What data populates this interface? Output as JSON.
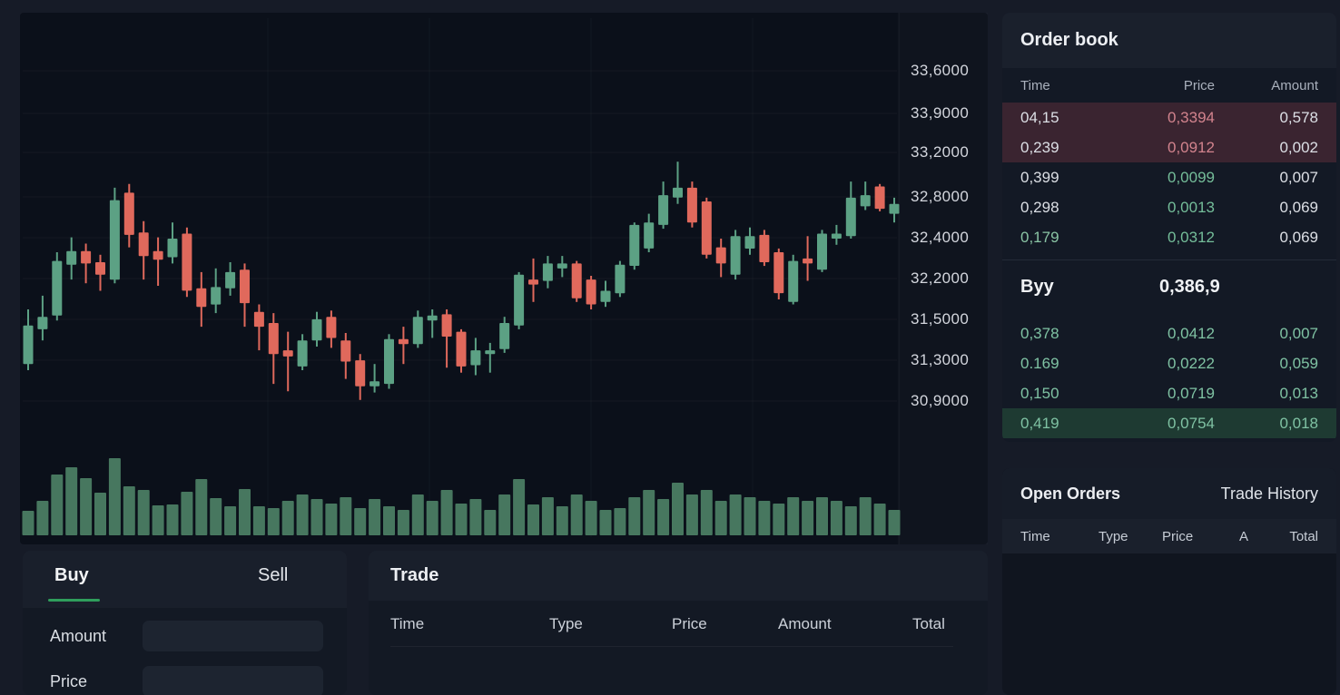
{
  "colors": {
    "up": "#5ca184",
    "down": "#e0695c",
    "volume": "#47775f",
    "ask_row_bg": "#3a2430",
    "bid_row_bg": "#1e3a32",
    "accent_green": "#2f9e5c"
  },
  "chart_data": {
    "type": "candlestick",
    "title": "",
    "y_axis_labels": [
      "33,6000",
      "33,9000",
      "33,2000",
      "32,8000",
      "32,4000",
      "32,2000",
      "31,5000",
      "31,3000",
      "30,9000"
    ],
    "price_axis": {
      "top_price": 33.88,
      "bottom_price": 30.81
    },
    "legend_position": "none",
    "grid": true,
    "candles": [
      {
        "o": 31.24,
        "h": 31.68,
        "l": 31.19,
        "c": 31.55
      },
      {
        "o": 31.52,
        "h": 31.79,
        "l": 31.43,
        "c": 31.62
      },
      {
        "o": 31.63,
        "h": 32.14,
        "l": 31.59,
        "c": 32.07
      },
      {
        "o": 32.04,
        "h": 32.26,
        "l": 31.92,
        "c": 32.15
      },
      {
        "o": 32.15,
        "h": 32.21,
        "l": 31.89,
        "c": 32.05
      },
      {
        "o": 32.06,
        "h": 32.12,
        "l": 31.83,
        "c": 31.96
      },
      {
        "o": 31.92,
        "h": 32.66,
        "l": 31.89,
        "c": 32.56
      },
      {
        "o": 32.62,
        "h": 32.69,
        "l": 32.18,
        "c": 32.28
      },
      {
        "o": 32.3,
        "h": 32.39,
        "l": 31.92,
        "c": 32.11
      },
      {
        "o": 32.15,
        "h": 32.26,
        "l": 31.87,
        "c": 32.08
      },
      {
        "o": 32.1,
        "h": 32.38,
        "l": 32.05,
        "c": 32.25
      },
      {
        "o": 32.29,
        "h": 32.34,
        "l": 31.78,
        "c": 31.83
      },
      {
        "o": 31.85,
        "h": 31.98,
        "l": 31.54,
        "c": 31.7
      },
      {
        "o": 31.72,
        "h": 32.01,
        "l": 31.65,
        "c": 31.86
      },
      {
        "o": 31.85,
        "h": 32.06,
        "l": 31.79,
        "c": 31.98
      },
      {
        "o": 32.0,
        "h": 32.05,
        "l": 31.54,
        "c": 31.73
      },
      {
        "o": 31.66,
        "h": 31.72,
        "l": 31.35,
        "c": 31.54
      },
      {
        "o": 31.57,
        "h": 31.65,
        "l": 31.08,
        "c": 31.32
      },
      {
        "o": 31.35,
        "h": 31.5,
        "l": 31.02,
        "c": 31.3
      },
      {
        "o": 31.22,
        "h": 31.48,
        "l": 31.19,
        "c": 31.43
      },
      {
        "o": 31.43,
        "h": 31.66,
        "l": 31.38,
        "c": 31.6
      },
      {
        "o": 31.62,
        "h": 31.67,
        "l": 31.37,
        "c": 31.45
      },
      {
        "o": 31.43,
        "h": 31.49,
        "l": 31.12,
        "c": 31.26
      },
      {
        "o": 31.27,
        "h": 31.32,
        "l": 30.95,
        "c": 31.06
      },
      {
        "o": 31.06,
        "h": 31.24,
        "l": 31.01,
        "c": 31.1
      },
      {
        "o": 31.08,
        "h": 31.48,
        "l": 31.04,
        "c": 31.44
      },
      {
        "o": 31.44,
        "h": 31.54,
        "l": 31.24,
        "c": 31.4
      },
      {
        "o": 31.4,
        "h": 31.67,
        "l": 31.37,
        "c": 31.62
      },
      {
        "o": 31.59,
        "h": 31.68,
        "l": 31.45,
        "c": 31.63
      },
      {
        "o": 31.64,
        "h": 31.68,
        "l": 31.21,
        "c": 31.46
      },
      {
        "o": 31.5,
        "h": 31.52,
        "l": 31.17,
        "c": 31.22
      },
      {
        "o": 31.23,
        "h": 31.45,
        "l": 31.15,
        "c": 31.35
      },
      {
        "o": 31.32,
        "h": 31.41,
        "l": 31.17,
        "c": 31.35
      },
      {
        "o": 31.36,
        "h": 31.62,
        "l": 31.33,
        "c": 31.57
      },
      {
        "o": 31.55,
        "h": 31.98,
        "l": 31.52,
        "c": 31.96
      },
      {
        "o": 31.92,
        "h": 32.09,
        "l": 31.74,
        "c": 31.88
      },
      {
        "o": 31.91,
        "h": 32.11,
        "l": 31.85,
        "c": 32.05
      },
      {
        "o": 32.01,
        "h": 32.11,
        "l": 31.94,
        "c": 32.05
      },
      {
        "o": 32.05,
        "h": 32.07,
        "l": 31.74,
        "c": 31.77
      },
      {
        "o": 31.92,
        "h": 31.95,
        "l": 31.68,
        "c": 31.72
      },
      {
        "o": 31.74,
        "h": 31.91,
        "l": 31.7,
        "c": 31.83
      },
      {
        "o": 31.81,
        "h": 32.07,
        "l": 31.78,
        "c": 32.04
      },
      {
        "o": 32.03,
        "h": 32.38,
        "l": 32.0,
        "c": 32.36
      },
      {
        "o": 32.17,
        "h": 32.45,
        "l": 32.14,
        "c": 32.38
      },
      {
        "o": 32.36,
        "h": 32.71,
        "l": 32.33,
        "c": 32.6
      },
      {
        "o": 32.58,
        "h": 32.87,
        "l": 32.53,
        "c": 32.66
      },
      {
        "o": 32.66,
        "h": 32.71,
        "l": 32.34,
        "c": 32.38
      },
      {
        "o": 32.55,
        "h": 32.58,
        "l": 32.09,
        "c": 32.12
      },
      {
        "o": 32.18,
        "h": 32.25,
        "l": 31.94,
        "c": 32.05
      },
      {
        "o": 31.96,
        "h": 32.32,
        "l": 31.92,
        "c": 32.27
      },
      {
        "o": 32.17,
        "h": 32.34,
        "l": 32.12,
        "c": 32.27
      },
      {
        "o": 32.28,
        "h": 32.32,
        "l": 32.03,
        "c": 32.06
      },
      {
        "o": 32.14,
        "h": 32.17,
        "l": 31.76,
        "c": 31.81
      },
      {
        "o": 31.74,
        "h": 32.12,
        "l": 31.72,
        "c": 32.07
      },
      {
        "o": 32.09,
        "h": 32.27,
        "l": 31.91,
        "c": 32.05
      },
      {
        "o": 32.0,
        "h": 32.32,
        "l": 31.98,
        "c": 32.29
      },
      {
        "o": 32.25,
        "h": 32.36,
        "l": 32.2,
        "c": 32.29
      },
      {
        "o": 32.27,
        "h": 32.71,
        "l": 32.25,
        "c": 32.58
      },
      {
        "o": 32.51,
        "h": 32.71,
        "l": 32.48,
        "c": 32.6
      },
      {
        "o": 32.67,
        "h": 32.69,
        "l": 32.47,
        "c": 32.49
      },
      {
        "o": 32.45,
        "h": 32.58,
        "l": 32.38,
        "c": 32.53
      }
    ],
    "volume": [
      27,
      38,
      67,
      75,
      63,
      47,
      85,
      54,
      50,
      33,
      34,
      48,
      62,
      41,
      32,
      51,
      32,
      30,
      38,
      45,
      40,
      35,
      42,
      30,
      40,
      32,
      28,
      45,
      38,
      50,
      35,
      40,
      28,
      45,
      62,
      34,
      42,
      32,
      45,
      38,
      28,
      30,
      42,
      50,
      40,
      58,
      45,
      50,
      38,
      45,
      42,
      38,
      35,
      42,
      38,
      42,
      38,
      32,
      42,
      35,
      28
    ],
    "colors": {
      "up": "#5ca184",
      "down": "#e0695c",
      "volume": "#47775f"
    }
  },
  "order_book": {
    "title": "Order book",
    "columns": [
      "Time",
      "Price",
      "Amount"
    ],
    "asks": [
      {
        "time": "04,15",
        "price": "0,3394",
        "amount": "0,578",
        "side": "sell",
        "row_bg": true,
        "time_green": false
      },
      {
        "time": "0,239",
        "price": "0,0912",
        "amount": "0,002",
        "side": "sell",
        "row_bg": true,
        "time_green": false
      },
      {
        "time": "0,399",
        "price": "0,0099",
        "amount": "0,007",
        "side": "buy",
        "row_bg": false,
        "time_green": false
      },
      {
        "time": "0,298",
        "price": "0,0013",
        "amount": "0,069",
        "side": "buy",
        "row_bg": false,
        "time_green": false
      },
      {
        "time": "0,179",
        "price": "0,0312",
        "amount": "0,069",
        "side": "buy",
        "row_bg": false,
        "time_green": true
      }
    ],
    "buy_section": {
      "label": "Byy",
      "value": "0,386,9",
      "rows": [
        {
          "time": "0,378",
          "price": "0,0412",
          "amount": "0,007",
          "highlight": false
        },
        {
          "time": "0.169",
          "price": "0,0222",
          "amount": "0,059",
          "highlight": false
        },
        {
          "time": "0,150",
          "price": "0,0719",
          "amount": "0,013",
          "highlight": false
        },
        {
          "time": "0,419",
          "price": "0,0754",
          "amount": "0,018",
          "highlight": true
        }
      ]
    }
  },
  "open_orders": {
    "tabs": [
      {
        "label": "Open Orders"
      },
      {
        "label": "Trade History"
      }
    ],
    "columns": [
      "Time",
      "Type",
      "Price",
      "A",
      "Total"
    ],
    "rows": []
  },
  "trade_form": {
    "tabs": [
      {
        "label": "Buy",
        "active": true
      },
      {
        "label": "Sell",
        "active": false
      }
    ],
    "fields": [
      {
        "label": "Amount",
        "value": "",
        "placeholder": ""
      },
      {
        "label": "Price",
        "value": "",
        "placeholder": ""
      }
    ]
  },
  "trade_table": {
    "title": "Trade",
    "columns": [
      "Time",
      "Type",
      "Price",
      "Amount",
      "Total"
    ],
    "rows": []
  }
}
